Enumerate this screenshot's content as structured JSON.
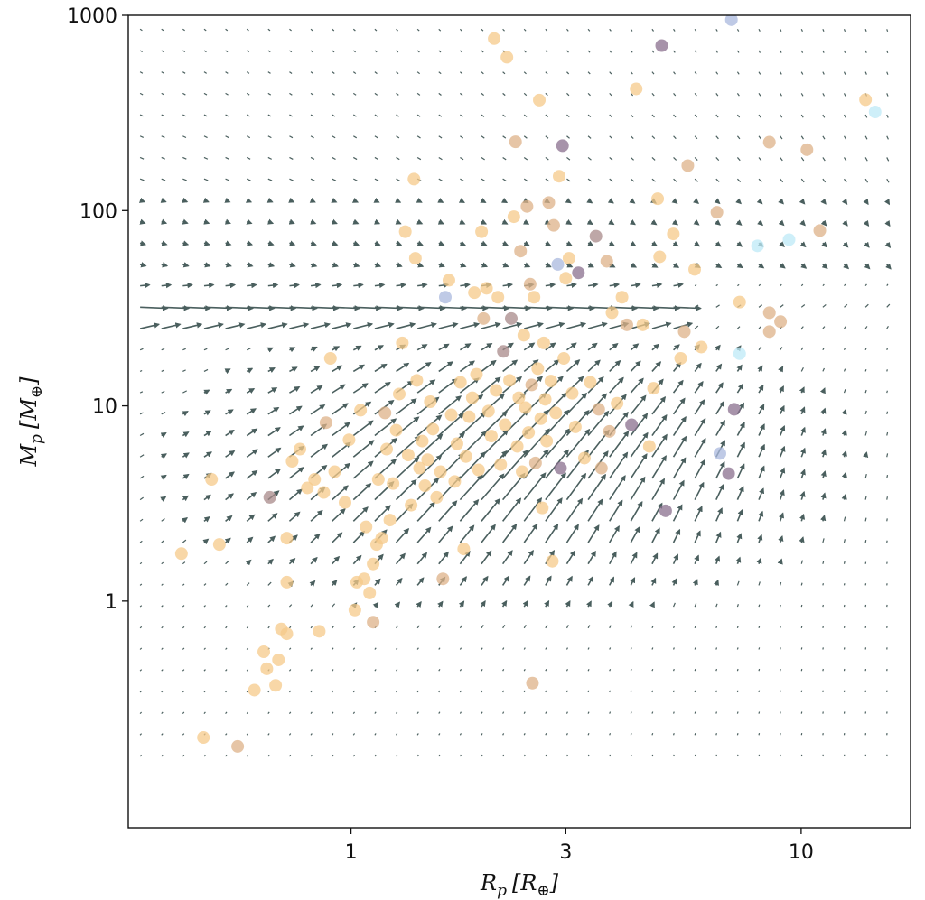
{
  "chart_data": {
    "type": "scatter",
    "subtype": "quiver-with-scatter",
    "title": "",
    "xaxis": {
      "label_main": "R",
      "label_sub": "p",
      "label_unit": "[R",
      "label_unit_sub": "⊕",
      "label_close": "]",
      "scale": "log",
      "range": [
        0.32,
        17.5
      ],
      "ticks": [
        1,
        3,
        10
      ],
      "tick_labels": [
        "1",
        "3",
        "10"
      ]
    },
    "yaxis": {
      "label_main": "M",
      "label_sub": "p",
      "label_unit": "[M",
      "label_unit_sub": "⊕",
      "label_close": "]",
      "scale": "log",
      "range": [
        0.069,
        1000
      ],
      "ticks": [
        1,
        10,
        100,
        1000
      ],
      "tick_labels": [
        "1",
        "10",
        "100",
        "1000"
      ]
    },
    "grid": false,
    "legend": "none",
    "colors": {
      "arrow": "#4a5f5e",
      "point_default": "#f5c98a",
      "point_tan": "#ddb288",
      "point_mauve": "#a88a8a",
      "point_purple": "#8a6f8e",
      "point_blue": "#a9b8dd",
      "point_cyan": "#bde9f7",
      "frame": "#111111"
    },
    "vector_field": {
      "x_range": [
        0.34,
        15.5
      ],
      "y_range": [
        0.16,
        850
      ],
      "nx": 36,
      "ny": 35,
      "attractor_r": 2.2,
      "attractor_m": 5.0,
      "barrier_m": 30
    },
    "points": [
      [
        0.42,
        1.75,
        "d"
      ],
      [
        0.47,
        0.2,
        "d"
      ],
      [
        0.49,
        4.2,
        "d"
      ],
      [
        0.51,
        1.95,
        "d"
      ],
      [
        0.56,
        0.18,
        "t"
      ],
      [
        0.61,
        0.35,
        "d"
      ],
      [
        0.64,
        0.55,
        "d"
      ],
      [
        0.65,
        0.45,
        "d"
      ],
      [
        0.66,
        3.4,
        "m"
      ],
      [
        0.68,
        0.37,
        "d"
      ],
      [
        0.69,
        0.5,
        "d"
      ],
      [
        0.7,
        0.72,
        "d"
      ],
      [
        0.72,
        0.68,
        "d"
      ],
      [
        0.72,
        1.25,
        "d"
      ],
      [
        0.72,
        2.1,
        "d"
      ],
      [
        0.74,
        5.2,
        "d"
      ],
      [
        0.77,
        6.0,
        "d"
      ],
      [
        0.8,
        3.8,
        "d"
      ],
      [
        0.83,
        4.2,
        "d"
      ],
      [
        0.85,
        0.7,
        "d"
      ],
      [
        0.87,
        3.6,
        "d"
      ],
      [
        0.88,
        8.2,
        "t"
      ],
      [
        0.9,
        17.5,
        "d"
      ],
      [
        0.92,
        4.6,
        "d"
      ],
      [
        0.97,
        3.2,
        "d"
      ],
      [
        0.99,
        6.7,
        "d"
      ],
      [
        1.02,
        0.9,
        "d"
      ],
      [
        1.03,
        1.25,
        "d"
      ],
      [
        1.05,
        9.5,
        "d"
      ],
      [
        1.07,
        1.3,
        "d"
      ],
      [
        1.08,
        2.4,
        "d"
      ],
      [
        1.1,
        1.1,
        "d"
      ],
      [
        1.12,
        0.78,
        "t"
      ],
      [
        1.12,
        1.55,
        "d"
      ],
      [
        1.14,
        1.95,
        "d"
      ],
      [
        1.15,
        4.2,
        "d"
      ],
      [
        1.17,
        2.1,
        "d"
      ],
      [
        1.19,
        9.2,
        "t"
      ],
      [
        1.2,
        6.0,
        "d"
      ],
      [
        1.22,
        2.6,
        "d"
      ],
      [
        1.24,
        4.0,
        "d"
      ],
      [
        1.26,
        7.5,
        "d"
      ],
      [
        1.28,
        11.5,
        "d"
      ],
      [
        1.3,
        21,
        "d"
      ],
      [
        1.32,
        78,
        "d"
      ],
      [
        1.34,
        5.6,
        "d"
      ],
      [
        1.36,
        3.1,
        "d"
      ],
      [
        1.38,
        145,
        "d"
      ],
      [
        1.39,
        57,
        "d"
      ],
      [
        1.4,
        13.5,
        "d"
      ],
      [
        1.42,
        4.8,
        "d"
      ],
      [
        1.44,
        6.6,
        "d"
      ],
      [
        1.46,
        3.9,
        "d"
      ],
      [
        1.48,
        5.3,
        "d"
      ],
      [
        1.5,
        10.5,
        "d"
      ],
      [
        1.52,
        7.6,
        "d"
      ],
      [
        1.55,
        3.4,
        "d"
      ],
      [
        1.58,
        4.6,
        "d"
      ],
      [
        1.6,
        1.3,
        "t"
      ],
      [
        1.62,
        36,
        "b"
      ],
      [
        1.65,
        44,
        "d"
      ],
      [
        1.67,
        9.0,
        "d"
      ],
      [
        1.7,
        4.1,
        "d"
      ],
      [
        1.72,
        6.4,
        "d"
      ],
      [
        1.75,
        13.2,
        "d"
      ],
      [
        1.78,
        1.85,
        "d"
      ],
      [
        1.8,
        5.5,
        "d"
      ],
      [
        1.83,
        8.8,
        "d"
      ],
      [
        1.86,
        11.0,
        "d"
      ],
      [
        1.88,
        38,
        "d"
      ],
      [
        1.9,
        14.5,
        "d"
      ],
      [
        1.92,
        4.7,
        "d"
      ],
      [
        1.95,
        78,
        "d"
      ],
      [
        1.97,
        28,
        "t"
      ],
      [
        2.0,
        40,
        "d"
      ],
      [
        2.02,
        9.4,
        "d"
      ],
      [
        2.05,
        7.0,
        "d"
      ],
      [
        2.08,
        760,
        "d"
      ],
      [
        2.1,
        12.0,
        "d"
      ],
      [
        2.12,
        36,
        "d"
      ],
      [
        2.15,
        5.0,
        "d"
      ],
      [
        2.18,
        19,
        "m"
      ],
      [
        2.2,
        8.0,
        "d"
      ],
      [
        2.22,
        610,
        "d"
      ],
      [
        2.25,
        13.5,
        "d"
      ],
      [
        2.27,
        28,
        "m"
      ],
      [
        2.3,
        93,
        "d"
      ],
      [
        2.32,
        225,
        "t"
      ],
      [
        2.34,
        6.2,
        "d"
      ],
      [
        2.36,
        11.0,
        "d"
      ],
      [
        2.38,
        62,
        "t"
      ],
      [
        2.4,
        4.6,
        "d"
      ],
      [
        2.42,
        23,
        "d"
      ],
      [
        2.44,
        9.8,
        "d"
      ],
      [
        2.46,
        105,
        "t"
      ],
      [
        2.48,
        7.3,
        "d"
      ],
      [
        2.5,
        42,
        "t"
      ],
      [
        2.52,
        12.8,
        "t"
      ],
      [
        2.53,
        0.38,
        "t"
      ],
      [
        2.55,
        36,
        "d"
      ],
      [
        2.57,
        5.1,
        "t"
      ],
      [
        2.6,
        15.5,
        "d"
      ],
      [
        2.62,
        368,
        "d"
      ],
      [
        2.64,
        8.6,
        "d"
      ],
      [
        2.66,
        3.0,
        "d"
      ],
      [
        2.68,
        21,
        "d"
      ],
      [
        2.7,
        10.8,
        "d"
      ],
      [
        2.72,
        6.6,
        "d"
      ],
      [
        2.75,
        110,
        "t"
      ],
      [
        2.78,
        13.4,
        "d"
      ],
      [
        2.8,
        1.6,
        "d"
      ],
      [
        2.82,
        84,
        "t"
      ],
      [
        2.85,
        9.2,
        "d"
      ],
      [
        2.88,
        53,
        "b"
      ],
      [
        2.9,
        150,
        "d"
      ],
      [
        2.92,
        4.8,
        "p"
      ],
      [
        2.95,
        215,
        "p"
      ],
      [
        2.97,
        17.5,
        "d"
      ],
      [
        3.0,
        45,
        "d"
      ],
      [
        3.05,
        57,
        "d"
      ],
      [
        3.1,
        11.6,
        "d"
      ],
      [
        3.15,
        7.8,
        "d"
      ],
      [
        3.2,
        48,
        "p"
      ],
      [
        3.3,
        5.4,
        "d"
      ],
      [
        3.4,
        13.2,
        "d"
      ],
      [
        3.5,
        74,
        "m"
      ],
      [
        3.55,
        9.6,
        "t"
      ],
      [
        3.6,
        4.8,
        "t"
      ],
      [
        3.7,
        55,
        "t"
      ],
      [
        3.75,
        7.4,
        "t"
      ],
      [
        3.8,
        30,
        "d"
      ],
      [
        3.9,
        10.3,
        "d"
      ],
      [
        4.0,
        36,
        "d"
      ],
      [
        4.1,
        26,
        "t"
      ],
      [
        4.2,
        8.0,
        "p"
      ],
      [
        4.3,
        420,
        "d"
      ],
      [
        4.45,
        26,
        "d"
      ],
      [
        4.6,
        6.2,
        "d"
      ],
      [
        4.7,
        12.3,
        "d"
      ],
      [
        4.8,
        115,
        "d"
      ],
      [
        4.85,
        58,
        "d"
      ],
      [
        4.9,
        700,
        "p"
      ],
      [
        5.0,
        2.9,
        "p"
      ],
      [
        5.2,
        76,
        "d"
      ],
      [
        5.4,
        17.5,
        "d"
      ],
      [
        5.5,
        24,
        "t"
      ],
      [
        5.6,
        170,
        "t"
      ],
      [
        5.8,
        50,
        "d"
      ],
      [
        6.0,
        20,
        "d"
      ],
      [
        6.5,
        98,
        "t"
      ],
      [
        6.6,
        5.7,
        "b"
      ],
      [
        6.9,
        4.5,
        "p"
      ],
      [
        7.0,
        950,
        "b"
      ],
      [
        7.1,
        9.6,
        "p"
      ],
      [
        7.3,
        18.5,
        "c"
      ],
      [
        7.3,
        34,
        "d"
      ],
      [
        8.0,
        66,
        "c"
      ],
      [
        8.5,
        224,
        "t"
      ],
      [
        8.5,
        30,
        "t"
      ],
      [
        8.5,
        24,
        "t"
      ],
      [
        9.0,
        27,
        "t"
      ],
      [
        9.4,
        71,
        "c"
      ],
      [
        10.3,
        205,
        "t"
      ],
      [
        11.0,
        79,
        "t"
      ],
      [
        13.9,
        370,
        "d"
      ],
      [
        14.6,
        320,
        "c"
      ]
    ]
  }
}
